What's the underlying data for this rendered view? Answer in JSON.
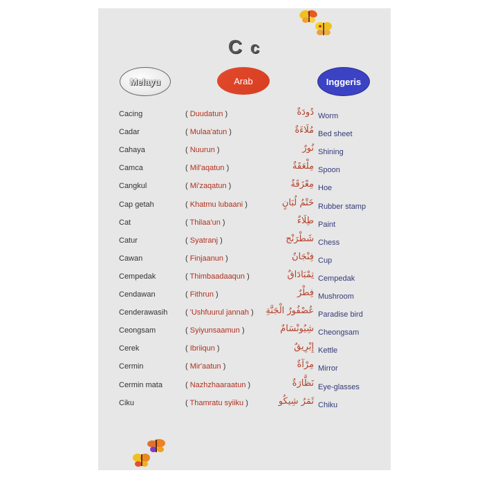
{
  "heading": {
    "upper": "C",
    "lower": "c"
  },
  "columns": {
    "melayu": "Melayu",
    "arab": "Arab",
    "inggeris": "Inggeris"
  },
  "colors": {
    "melayu_pill": "#e0e0e0",
    "arab_pill": "#e0462a",
    "inggeris_pill": "#3b43c4",
    "transliteration": "#b2301f",
    "english": "#353a78"
  },
  "entries": [
    {
      "melayu": "Cacing",
      "translit": "Duudatun",
      "arabic": "دُودَةٌ",
      "english": "Worm"
    },
    {
      "melayu": "Cadar",
      "translit": "Mulaa'atun",
      "arabic": "مُلَاءَةٌ",
      "english": "Bed sheet"
    },
    {
      "melayu": "Cahaya",
      "translit": "Nuurun",
      "arabic": "نُورٌ",
      "english": "Shining"
    },
    {
      "melayu": "Camca",
      "translit": "Mil'aqatun",
      "arabic": "مِلْعَقَةٌ",
      "english": "Spoon"
    },
    {
      "melayu": "Cangkul",
      "translit": "Mi'zaqatun",
      "arabic": "مِعْزَقَةٌ",
      "english": "Hoe"
    },
    {
      "melayu": "Cap getah",
      "translit": "Khatmu lubaani",
      "arabic": "خَتْمُ لُبَانٍ",
      "english": "Rubber stamp"
    },
    {
      "melayu": "Cat",
      "translit": "Thilaa'un",
      "arabic": "طِلَاءٌ",
      "english": "Paint"
    },
    {
      "melayu": "Catur",
      "translit": "Syatranj",
      "arabic": "شَطْرَنْج",
      "english": "Chess"
    },
    {
      "melayu": "Cawan",
      "translit": "Finjaanun",
      "arabic": "فِنْجَانٌ",
      "english": "Cup"
    },
    {
      "melayu": "Cempedak",
      "translit": "Thimbaadaaqun",
      "arabic": "تِمْبَادَاقٌ",
      "english": "Cempedak"
    },
    {
      "melayu": "Cendawan",
      "translit": "Fithrun",
      "arabic": "فِطْرٌ",
      "english": "Mushroom"
    },
    {
      "melayu": "Cenderawasih",
      "translit": "'Ushfuurul jannah",
      "arabic": "عُصْفُورُ الْجَنَّةِ",
      "english": "Paradise bird"
    },
    {
      "melayu": "Ceongsam",
      "translit": "Syiyunsaamun",
      "arabic": "شِيُونْسَامٌ",
      "english": "Cheongsam"
    },
    {
      "melayu": "Cerek",
      "translit": "Ibriiqun",
      "arabic": "إِبْرِيقٌ",
      "english": "Kettle"
    },
    {
      "melayu": "Cermin",
      "translit": "Mir'aatun",
      "arabic": "مِرْآةٌ",
      "english": "Mirror"
    },
    {
      "melayu": "Cermin mata",
      "translit": "Nazhzhaaraatun",
      "arabic": "نَظَّارَةٌ",
      "english": "Eye-glasses"
    },
    {
      "melayu": "Ciku",
      "translit": "Thamratu syiiku",
      "arabic": "ثَمَرُ شِيكُو",
      "english": "Chiku"
    }
  ]
}
